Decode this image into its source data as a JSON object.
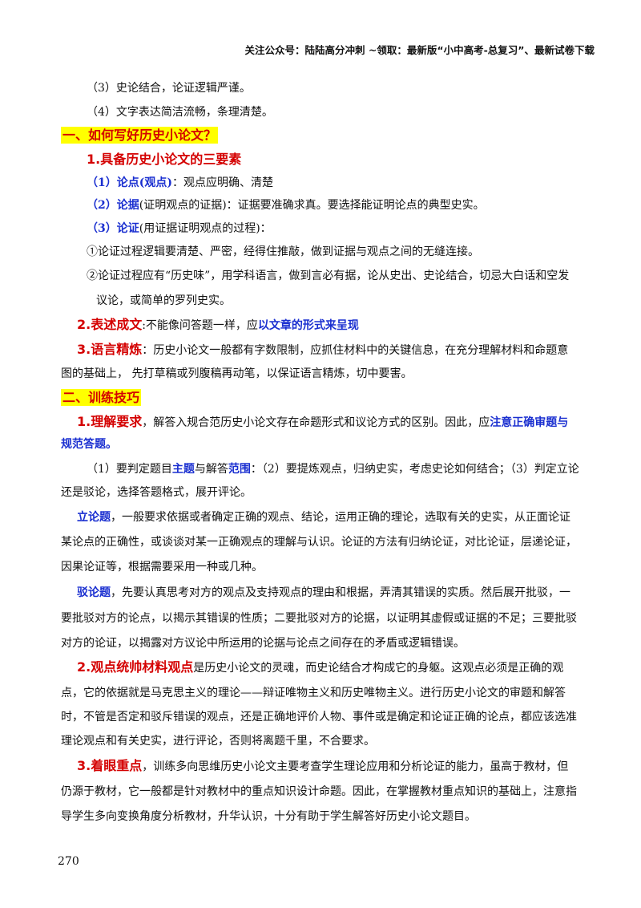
{
  "header": "关注公众号：陆陆高分冲刺 ~领取：最新版“小中高考-总复习”、最新试卷下载",
  "lines": {
    "l1": "（3）史论结合，论证逻辑严谨。",
    "l2": "（4）文字表达简洁流畅，条理清楚。",
    "s1": "一、如何写好历史小论文？",
    "s1_1": "1.具备历史小论文的三要素",
    "p1_label": "（1）论点(观点)",
    "p1_text": "：观点应明确、清楚",
    "p2_label": "（2）论据",
    "p2_text": "(证明观点的证据)：证据要准确求真。要选择能证明论点的典型史实。",
    "p3_label": "（3）论证",
    "p3_text": "(用证据证明观点的过程)：",
    "c1": "①论证过程逻辑要清楚、严密，经得住推敲，做到证据与观点之间的无缝连接。",
    "c2a": "②论证过程应有“历史味”，用学科语言，做到言必有据，论从史出、史论结合，切忌大白话和空发",
    "c2b": "议论，或简单的罗列史实。",
    "s1_2_label": "2.表述成文",
    "s1_2_text": ":不能像问答题一样，应",
    "s1_2_blue": "以文章的形式来呈现",
    "s1_3_label": "3.语言精炼",
    "s1_3_text": "：历史小论文一般都有字数限制，应抓住材料中的关键信息，在充分理解材料和命题意",
    "s1_3_text2": "图的基础上，  先打草稿或列腹稿再动笔，以保证语言精炼，切中要害。",
    "s2": "二、训练技巧",
    "s2_1_label": "1.理解要求",
    "s2_1_text": "，解答入规合范历史小论文存在命题形式和议论方式的区别。因此，应",
    "s2_1_blue": "注意正确审题与",
    "s2_1_blue2": "规范答题。",
    "r1_a": "（1）要判定题目",
    "r1_b": "主题",
    "r1_c": "与解答",
    "r1_d": "范围",
    "r1_e": "：（2）要提炼观点，归纳史实，考虑史论如何结合；（3）判定立论",
    "r1_f": "还是驳论，选择答题格式，展开评论。",
    "lilun_label": "立论题",
    "lilun_1": "，一般要求依据或者确定正确的观点、结论，运用正确的理论，选取有关的史实，从正面论证",
    "lilun_2": "某论点的正确性，或谈谈对某一正确观点的理解与认识。论证的方法有归纳论证，对比论证，层递论证，",
    "lilun_3": "因果论证等，根据需要采用一种或几种。",
    "bolun_label": "驳论题",
    "bolun_1": "，先要认真思考对方的观点及支持观点的理由和根据，弄清其错误的实质。然后展开批驳，一",
    "bolun_2": "要批驳对方的论点，以揭示其错误的性质；二要批驳对方的论据，以证明其虚假或证据的不足；三要批驳",
    "bolun_3": "对方的论证，以揭露对方议论中所运用的论据与论点之间存在的矛盾或逻辑错误。",
    "s2_2_label": "2.观点统帅材料观点",
    "s2_2_1": "是历史小论文的灵魂，而史论结合才构成它的身躯。这观点必须是正确的观",
    "s2_2_2": "点，它的依据就是马克思主义的理论——辩证唯物主义和历史唯物主义。进行历史小论文的审题和解答",
    "s2_2_3": "时，不管是否定和驳斥错误的观点，还是正确地评价人物、事件或是确定和论证正确的论点，都应该选准",
    "s2_2_4": "理论观点和有关史实，进行评论，否则将离题千里，不合要求。",
    "s2_3_label": "3.着眼重点",
    "s2_3_1": "，训练多向思维历史小论文主要考查学生理论应用和分析论证的能力，虽高于教材，但",
    "s2_3_2": "仍源于教材，它一般都是针对教材中的重点知识设计命题。因此，在掌握教材重点知识的基础上，注意指",
    "s2_3_3": "导学生多向变换角度分析教材，升华认识，十分有助于学生解答好历史小论文题目。"
  },
  "page_number": "270"
}
